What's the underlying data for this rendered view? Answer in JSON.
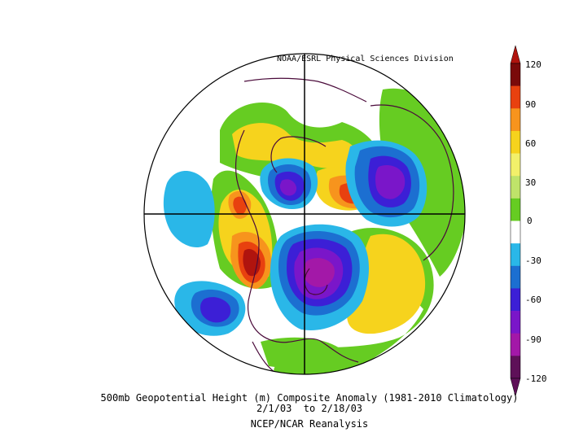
{
  "credit": "NOAA/ESRL Physical Sciences Division",
  "caption": {
    "line1": "500mb Geopotential Height (m) Composite Anomaly (1981-2010 Climatology)",
    "line2": "2/1/03  to 2/18/03",
    "line3": "NCEP/NCAR Reanalysis"
  },
  "colorbar": {
    "ticks": [
      "120",
      "90",
      "60",
      "30",
      "0",
      "-30",
      "-60",
      "-90",
      "-120"
    ],
    "colors": [
      "#7a0a0a",
      "#e8410f",
      "#f7941d",
      "#f6d31d",
      "#f2f06a",
      "#bfe36a",
      "#66cc22",
      "#ffffff",
      "#2ab7e8",
      "#1c6fd1",
      "#3c1fd6",
      "#7a16c9",
      "#a318a8",
      "#5e1058"
    ]
  },
  "colors": {
    "land_outline": "#4a0a3a",
    "graticule": "#000000"
  }
}
